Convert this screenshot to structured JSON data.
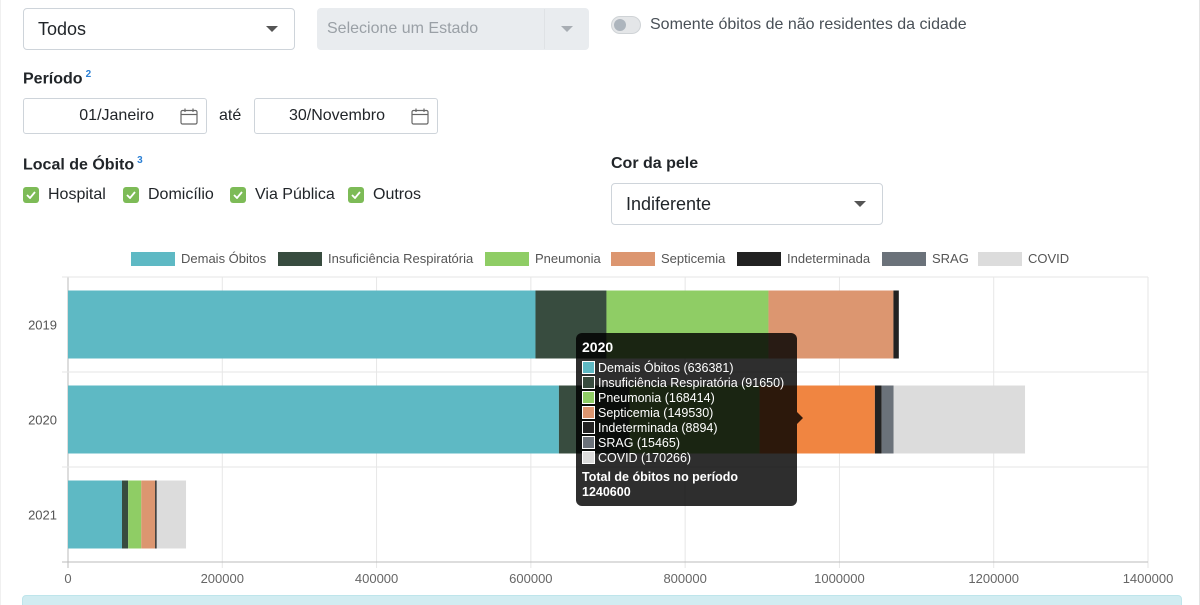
{
  "filters": {
    "scope_select": "Todos",
    "state_select_placeholder": "Selecione um Estado",
    "nonresident_toggle_label": "Somente óbitos de não residentes da cidade",
    "period": {
      "label": "Período",
      "footnote": "2",
      "start": "01/Janeiro",
      "between": "até",
      "end": "30/Novembro"
    },
    "place": {
      "label": "Local de Óbito",
      "footnote": "3",
      "options": [
        "Hospital",
        "Domicílio",
        "Via Pública",
        "Outros"
      ]
    },
    "skin": {
      "label": "Cor da pele",
      "value": "Indiferente"
    }
  },
  "legend": [
    {
      "label": "Demais Óbitos",
      "color": "#5eb9c4"
    },
    {
      "label": "Insuficiência Respiratória",
      "color": "#384c3f"
    },
    {
      "label": "Pneumonia",
      "color": "#8fcd65"
    },
    {
      "label": "Septicemia",
      "color": "#dc9670"
    },
    {
      "label": "Indeterminada",
      "color": "#222222"
    },
    {
      "label": "SRAG",
      "color": "#6b727a"
    },
    {
      "label": "COVID",
      "color": "#dcdcdc"
    }
  ],
  "chart_data": {
    "type": "bar",
    "orientation": "horizontal",
    "stacked": true,
    "categories": [
      "2019",
      "2020",
      "2021"
    ],
    "series": [
      {
        "name": "Demais Óbitos",
        "values": [
          606000,
          636381,
          70000
        ]
      },
      {
        "name": "Insuficiência Respiratória",
        "values": [
          92000,
          91650,
          8000
        ]
      },
      {
        "name": "Pneumonia",
        "values": [
          210000,
          168414,
          17000
        ]
      },
      {
        "name": "Septicemia",
        "values": [
          162000,
          149530,
          18000
        ]
      },
      {
        "name": "Indeterminada",
        "values": [
          7000,
          8894,
          2000
        ]
      },
      {
        "name": "SRAG",
        "values": [
          0,
          15465,
          0
        ]
      },
      {
        "name": "COVID",
        "values": [
          0,
          170266,
          38000
        ]
      }
    ],
    "xlim": [
      0,
      1400000
    ],
    "x_ticks": [
      "0",
      "200000",
      "400000",
      "600000",
      "800000",
      "1000000",
      "1200000",
      "1400000"
    ],
    "grid": true,
    "legend_position": "top"
  },
  "tooltip": {
    "title": "2020",
    "rows": [
      "Demais Óbitos (636381)",
      "Insuficiência Respiratória (91650)",
      "Pneumonia (168414)",
      "Septicemia (149530)",
      "Indeterminada (8894)",
      "SRAG (15465)",
      "COVID (170266)"
    ],
    "colors": [
      "#5eb9c4",
      "#384c3f",
      "#8fcd65",
      "#dc9670",
      "#222222",
      "#6b727a",
      "#dcdcdc"
    ],
    "total_label": "Total de óbitos no período",
    "total_value": "1240600"
  }
}
